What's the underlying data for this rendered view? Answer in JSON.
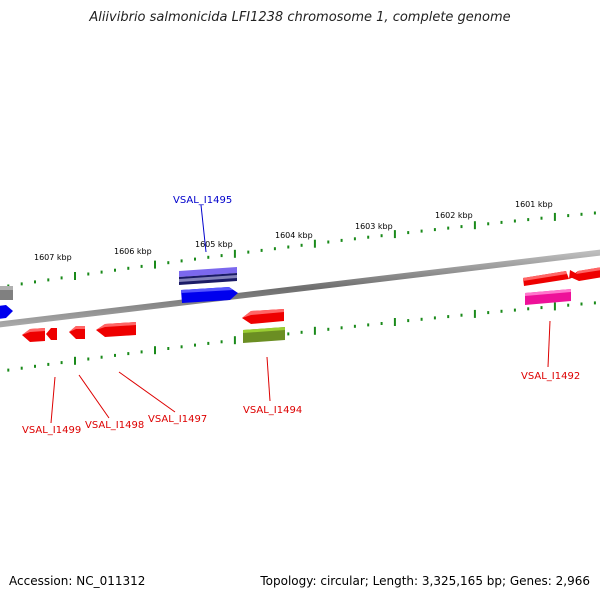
{
  "title": "Aliivibrio salmonicida LFI1238 chromosome 1, complete genome",
  "footer": {
    "accession": "Accession: NC_011312",
    "summary": "Topology: circular; Length: 3,325,165 bp; Genes: 2,966"
  },
  "colors": {
    "backbone": "#808080",
    "tick": "#1a8a1a",
    "gene_red": "#ee0000",
    "gene_blue": "#0000ee",
    "gene_magenta": "#ee1199",
    "gene_olive": "#6b8e23",
    "gene_purple": "#7b68ee",
    "gene_gray": "#808080",
    "label_red": "#dd0000",
    "label_blue": "#0000cc"
  },
  "ruler_labels": [
    "1607 kbp",
    "1606 kbp",
    "1605 kbp",
    "1604 kbp",
    "1603 kbp",
    "1602 kbp",
    "1601 kbp"
  ],
  "gene_labels": [
    "VSAL_I1495",
    "VSAL_I1499",
    "VSAL_I1498",
    "VSAL_I1497",
    "VSAL_I1494",
    "VSAL_I1492"
  ]
}
